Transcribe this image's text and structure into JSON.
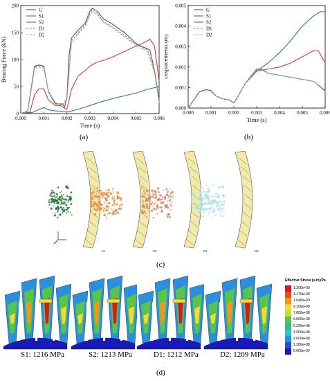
{
  "chart_data": [
    {
      "type": "line",
      "panel": "(a)",
      "xlabel": "Time (s)",
      "ylabel": "Bearing Force (kN)",
      "xlim": [
        0,
        0.006
      ],
      "ylim": [
        0,
        200
      ],
      "xticks": [
        "0.000",
        "0.001",
        "0.002",
        "0.003",
        "0.004",
        "0.005",
        "0.006"
      ],
      "yticks": [
        "0",
        "50",
        "100",
        "150",
        "200"
      ],
      "legend": "top-left",
      "series": [
        {
          "name": "G",
          "color": "#555555",
          "dash": "solid",
          "x": [
            0,
            0.0003,
            0.0005,
            0.0006,
            0.0008,
            0.001,
            0.0012,
            0.0015,
            0.0018,
            0.0019,
            0.002,
            0.0021,
            0.0022,
            0.0025,
            0.0028,
            0.003,
            0.0031,
            0.0033,
            0.0036,
            0.004,
            0.0045,
            0.005,
            0.0052,
            0.0055,
            0.0056,
            0.0058,
            0.006
          ],
          "y": [
            0,
            5,
            60,
            88,
            90,
            88,
            40,
            18,
            18,
            12,
            30,
            110,
            140,
            155,
            168,
            190,
            195,
            190,
            175,
            165,
            150,
            130,
            125,
            120,
            118,
            80,
            25
          ]
        },
        {
          "name": "S1",
          "color": "#d63a3a",
          "dash": "solid",
          "x": [
            0,
            0.0004,
            0.0006,
            0.0008,
            0.001,
            0.0012,
            0.0015,
            0.0017,
            0.0019,
            0.002,
            0.0022,
            0.0025,
            0.0028,
            0.003,
            0.0033,
            0.0037,
            0.004,
            0.0045,
            0.005,
            0.0052,
            0.0055,
            0.0056,
            0.0058,
            0.006
          ],
          "y": [
            0,
            3,
            35,
            46,
            46,
            25,
            15,
            15,
            10,
            8,
            45,
            70,
            80,
            88,
            95,
            100,
            105,
            115,
            125,
            128,
            135,
            138,
            125,
            60
          ]
        },
        {
          "name": "S2",
          "color": "#2f6fb5",
          "dash": "solid",
          "x": [
            0,
            0.0005,
            0.0008,
            0.001,
            0.0012,
            0.0015,
            0.0018,
            0.002,
            0.0025,
            0.003,
            0.0035,
            0.004,
            0.0045,
            0.005,
            0.0055,
            0.006
          ],
          "y": [
            0,
            2,
            8,
            11,
            7,
            5,
            4,
            3,
            8,
            15,
            22,
            28,
            33,
            38,
            45,
            50
          ]
        },
        {
          "name": "D1",
          "color": "#8a8a8a",
          "dash": "dashed",
          "x": [
            0,
            0.0003,
            0.0005,
            0.0006,
            0.0008,
            0.001,
            0.0012,
            0.0015,
            0.0018,
            0.002,
            0.0022,
            0.0025,
            0.0028,
            0.003,
            0.0031,
            0.0033,
            0.0036,
            0.004,
            0.0045,
            0.005,
            0.0055,
            0.0058,
            0.006
          ],
          "y": [
            0,
            5,
            58,
            86,
            88,
            86,
            42,
            20,
            15,
            28,
            135,
            150,
            165,
            185,
            192,
            186,
            170,
            160,
            145,
            128,
            118,
            78,
            22
          ]
        },
        {
          "name": "D2",
          "color": "#7fc97f",
          "dash": "dashed",
          "x": [
            0,
            0.0003,
            0.0005,
            0.0006,
            0.0008,
            0.001,
            0.0012,
            0.0015,
            0.0018,
            0.002,
            0.0022,
            0.0025,
            0.0028,
            0.003,
            0.0031,
            0.0033,
            0.0036,
            0.004,
            0.0045,
            0.005,
            0.0055,
            0.0058,
            0.006
          ],
          "y": [
            0,
            4,
            55,
            84,
            86,
            84,
            40,
            20,
            16,
            26,
            130,
            148,
            162,
            182,
            188,
            184,
            168,
            158,
            142,
            126,
            115,
            75,
            20
          ]
        }
      ]
    },
    {
      "type": "line",
      "panel": "(b)",
      "xlabel": "Time (s)",
      "ylabel": "Displacements (m)",
      "xlim": [
        0,
        0.006
      ],
      "ylim": [
        0,
        0.005
      ],
      "xticks": [
        "0.000",
        "0.001",
        "0.002",
        "0.003",
        "0.004",
        "0.005",
        "0.006"
      ],
      "yticks": [
        "0.000",
        "0.001",
        "0.002",
        "0.003",
        "0.004",
        "0.005"
      ],
      "legend": "top-left",
      "series": [
        {
          "name": "G",
          "color": "#555555",
          "dash": "solid",
          "x": [
            0,
            0.0005,
            0.0008,
            0.001,
            0.0012,
            0.0015,
            0.0018,
            0.002,
            0.0022,
            0.0025,
            0.003,
            0.0032,
            0.0035,
            0.004,
            0.0045,
            0.005,
            0.0055,
            0.006
          ],
          "y": [
            0,
            0.0008,
            0.0009,
            0.00085,
            0.0006,
            0.00045,
            0.0004,
            0.00025,
            0.0006,
            0.0012,
            0.0019,
            0.0019,
            0.0017,
            0.0016,
            0.0015,
            0.0014,
            0.0013,
            0.00085
          ]
        },
        {
          "name": "S1",
          "color": "#d63a3a",
          "dash": "solid",
          "x": [
            0,
            0.0005,
            0.0008,
            0.001,
            0.0012,
            0.0015,
            0.0018,
            0.002,
            0.0022,
            0.0025,
            0.003,
            0.0035,
            0.004,
            0.0045,
            0.005,
            0.0055,
            0.0057,
            0.006
          ],
          "y": [
            0,
            0.0008,
            0.0009,
            0.00085,
            0.0006,
            0.00045,
            0.0004,
            0.00025,
            0.0006,
            0.0012,
            0.0018,
            0.0019,
            0.002,
            0.0022,
            0.0025,
            0.0028,
            0.0028,
            0.0022
          ]
        },
        {
          "name": "S2",
          "color": "#2f6fb5",
          "dash": "solid",
          "x": [
            0,
            0.0005,
            0.0008,
            0.001,
            0.0012,
            0.0015,
            0.0018,
            0.002,
            0.0022,
            0.0025,
            0.003,
            0.0035,
            0.004,
            0.0045,
            0.005,
            0.0055,
            0.0058,
            0.006
          ],
          "y": [
            0,
            0.0008,
            0.0009,
            0.00085,
            0.0006,
            0.00045,
            0.0004,
            0.00025,
            0.0006,
            0.0012,
            0.0018,
            0.0022,
            0.0027,
            0.0033,
            0.004,
            0.0045,
            0.0047,
            0.0047
          ]
        },
        {
          "name": "D1",
          "color": "#8a8a8a",
          "dash": "dashed",
          "x": [
            0,
            0.0005,
            0.0008,
            0.001,
            0.0012,
            0.0015,
            0.0018,
            0.002,
            0.0022,
            0.0025,
            0.003,
            0.0032,
            0.0035,
            0.004,
            0.0045,
            0.005,
            0.0055,
            0.006
          ],
          "y": [
            0,
            0.0008,
            0.00088,
            0.00083,
            0.0006,
            0.00045,
            0.0004,
            0.00026,
            0.0006,
            0.0012,
            0.00185,
            0.00188,
            0.0017,
            0.0016,
            0.0015,
            0.0014,
            0.0013,
            0.00083
          ]
        },
        {
          "name": "D2",
          "color": "#7fc97f",
          "dash": "dashed",
          "x": [
            0,
            0.0005,
            0.0008,
            0.001,
            0.0012,
            0.0015,
            0.0018,
            0.002,
            0.0022,
            0.0025,
            0.003,
            0.0032,
            0.0035,
            0.004,
            0.0045,
            0.005,
            0.0055,
            0.006
          ],
          "y": [
            0,
            0.00078,
            0.00087,
            0.00082,
            0.0006,
            0.00045,
            0.0004,
            0.00027,
            0.0006,
            0.0012,
            0.00183,
            0.00186,
            0.0017,
            0.0016,
            0.0015,
            0.0014,
            0.0013,
            0.0008
          ]
        }
      ]
    }
  ],
  "panel_c": {
    "label": "(c)",
    "captions": [
      "S1",
      "S2",
      "D1",
      "D2"
    ],
    "debris_colors": [
      "#2e7d3a",
      "#f08a3c",
      "#d98a6a",
      "#a6e3e3"
    ]
  },
  "panel_d": {
    "label": "(d)",
    "captions": [
      "S1: 1216 MPa",
      "S2: 1213 MPa",
      "D1: 1212 MPa",
      "D2: 1209 MPa"
    ],
    "colorbar_title": "Effective Stress (v-m)/Pa",
    "colorbar_ticks": [
      "1.300e+09",
      "1.170e+09",
      "1.040e+09",
      "9.100e+08",
      "7.800e+08",
      "6.500e+08",
      "5.200e+08",
      "3.900e+08",
      "2.600e+08",
      "1.300e+08",
      "0.000e+00"
    ],
    "colorbar_colors": [
      "#d7191c",
      "#f04a1c",
      "#f7941d",
      "#fdd835",
      "#c6e12c",
      "#58c44a",
      "#2bbf8a",
      "#2bc4c9",
      "#2a8fdc",
      "#2450d6",
      "#1a1ab8"
    ]
  }
}
